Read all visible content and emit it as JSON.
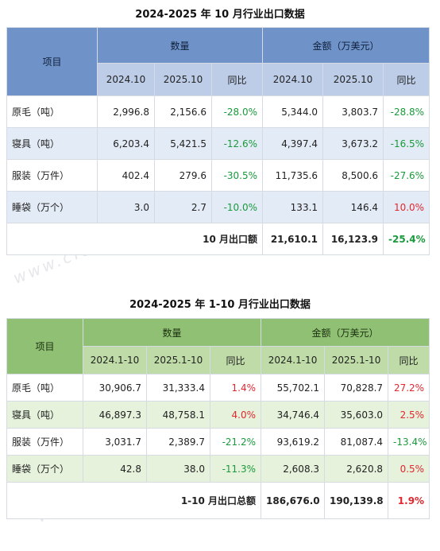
{
  "table1": {
    "title": "2024-2025 年 10 月行业出口数据",
    "header": {
      "item": "项目",
      "quantity": "数量",
      "amount": "金额（万美元）",
      "cols": [
        "2024.10",
        "2025.10",
        "同比",
        "2024.10",
        "2025.10",
        "同比"
      ]
    },
    "rows": [
      {
        "label": "原毛（吨）",
        "q1": "2,996.8",
        "q2": "2,156.6",
        "qy": "-28.0%",
        "a1": "5,344.0",
        "a2": "3,803.7",
        "ay": "-28.8%"
      },
      {
        "label": "寝具（吨）",
        "q1": "6,203.4",
        "q2": "5,421.5",
        "qy": "-12.6%",
        "a1": "4,397.4",
        "a2": "3,673.2",
        "ay": "-16.5%"
      },
      {
        "label": "服装（万件）",
        "q1": "402.4",
        "q2": "279.6",
        "qy": "-30.5%",
        "a1": "11,735.6",
        "a2": "8,500.6",
        "ay": "-27.6%"
      },
      {
        "label": "睡袋（万个）",
        "q1": "3.0",
        "q2": "2.7",
        "qy": "-10.0%",
        "a1": "133.1",
        "a2": "146.4",
        "ay": "10.0%"
      }
    ],
    "total": {
      "label": "10 月出口额",
      "a1": "21,610.1",
      "a2": "16,123.9",
      "ay": "-25.4%"
    }
  },
  "table2": {
    "title": "2024-2025 年 1-10 月行业出口数据",
    "header": {
      "item": "项目",
      "quantity": "数量",
      "amount": "金额（万美元）",
      "cols": [
        "2024.1-10",
        "2025.1-10",
        "同比",
        "2024.1-10",
        "2025.1-10",
        "同比"
      ]
    },
    "rows": [
      {
        "label": "原毛（吨）",
        "q1": "30,906.7",
        "q2": "31,333.4",
        "qy": "1.4%",
        "a1": "55,702.1",
        "a2": "70,828.7",
        "ay": "27.2%"
      },
      {
        "label": "寝具（吨）",
        "q1": "46,897.3",
        "q2": "48,758.1",
        "qy": "4.0%",
        "a1": "34,746.4",
        "a2": "35,603.0",
        "ay": "2.5%"
      },
      {
        "label": "服装（万件）",
        "q1": "3,031.7",
        "q2": "2,389.7",
        "qy": "-21.2%",
        "a1": "93,619.2",
        "a2": "81,087.4",
        "ay": "-13.4%"
      },
      {
        "label": "睡袋（万个）",
        "q1": "42.8",
        "q2": "38.0",
        "qy": "-11.3%",
        "a1": "2,608.3",
        "a2": "2,620.8",
        "ay": "0.5%"
      }
    ],
    "total": {
      "label": "1-10 月出口总额",
      "a1": "186,676.0",
      "a2": "190,139.8",
      "ay": "1.9%"
    }
  },
  "watermark": "www.cfd.com.cn",
  "colors": {
    "positive": "#e0282e",
    "negative": "#1a9a3c"
  }
}
